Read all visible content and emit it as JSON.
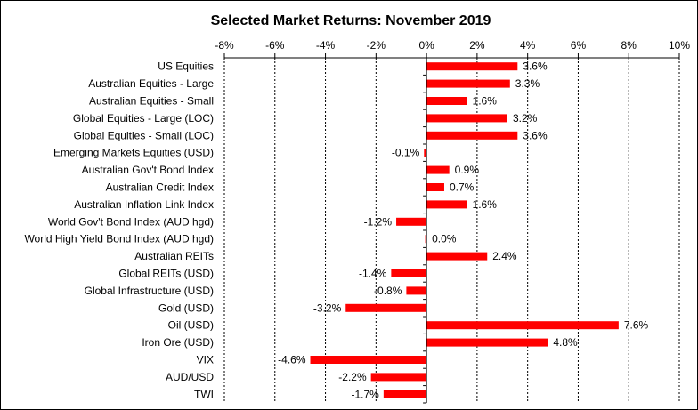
{
  "chart_data": {
    "type": "bar",
    "orientation": "horizontal",
    "title": "Selected Market Returns: November 2019",
    "xlabel": "",
    "ylabel": "",
    "xlim": [
      -8,
      10
    ],
    "x_ticks": [
      -8,
      -6,
      -4,
      -2,
      0,
      2,
      4,
      6,
      8,
      10
    ],
    "x_tick_labels": [
      "-8%",
      "-6%",
      "-4%",
      "-2%",
      "0%",
      "2%",
      "4%",
      "6%",
      "8%",
      "10%"
    ],
    "x_axis_position": "top",
    "grid": "vertical-dashed",
    "legend": "none",
    "bar_color": "#ff0000",
    "categories": [
      "US Equities",
      "Australian Equities - Large",
      "Australian Equities - Small",
      "Global Equities - Large (LOC)",
      "Global Equities - Small (LOC)",
      "Emerging Markets Equities (USD)",
      "Australian Gov't Bond Index",
      "Australian Credit Index",
      "Australian Inflation Link Index",
      "World Gov't Bond Index (AUD hgd)",
      "World High Yield Bond Index (AUD hgd)",
      "Australian REITs",
      "Global REITs (USD)",
      "Global Infrastructure (USD)",
      "Gold (USD)",
      "Oil (USD)",
      "Iron Ore (USD)",
      "VIX",
      "AUD/USD",
      "TWI"
    ],
    "values": [
      3.6,
      3.3,
      1.6,
      3.2,
      3.6,
      -0.1,
      0.9,
      0.7,
      1.6,
      -1.2,
      0.0,
      2.4,
      -1.4,
      -0.8,
      -3.2,
      7.6,
      4.8,
      -4.6,
      -2.2,
      -1.7
    ],
    "data_labels": [
      "3.6%",
      "3.3%",
      "1.6%",
      "3.2%",
      "3.6%",
      "-0.1%",
      "0.9%",
      "0.7%",
      "1.6%",
      "-1.2%",
      "0.0%",
      "2.4%",
      "-1.4%",
      "-0.8%",
      "-3.2%",
      "7.6%",
      "4.8%",
      "-4.6%",
      "-2.2%",
      "-1.7%"
    ]
  }
}
